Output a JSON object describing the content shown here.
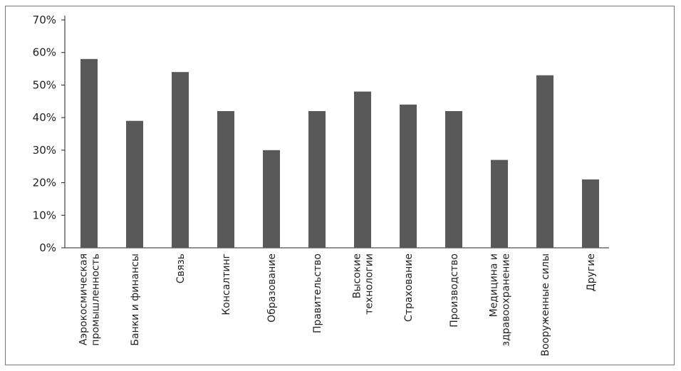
{
  "chart_data": {
    "type": "bar",
    "title": "",
    "xlabel": "",
    "ylabel": "",
    "ylim": [
      0,
      70
    ],
    "y_tick_format": "percent",
    "grid": false,
    "legend": "none",
    "bar_color": "#595959",
    "y_ticks": [
      "0%",
      "10%",
      "20%",
      "30%",
      "40%",
      "50%",
      "60%",
      "70%"
    ],
    "categories": [
      [
        "Аэрокосмическая",
        "промышленность"
      ],
      [
        "Банки и финансы"
      ],
      [
        "Связь"
      ],
      [
        "Консалтинг"
      ],
      [
        "Образование"
      ],
      [
        "Правительство"
      ],
      [
        "Высокие",
        "технологии"
      ],
      [
        "Страхование"
      ],
      [
        "Производство"
      ],
      [
        "Медицина и",
        "здравоохранение"
      ],
      [
        "Вооруженные силы"
      ],
      [
        "Другие"
      ]
    ],
    "values": [
      58,
      39,
      54,
      42,
      30,
      42,
      48,
      44,
      42,
      27,
      53,
      21
    ]
  }
}
